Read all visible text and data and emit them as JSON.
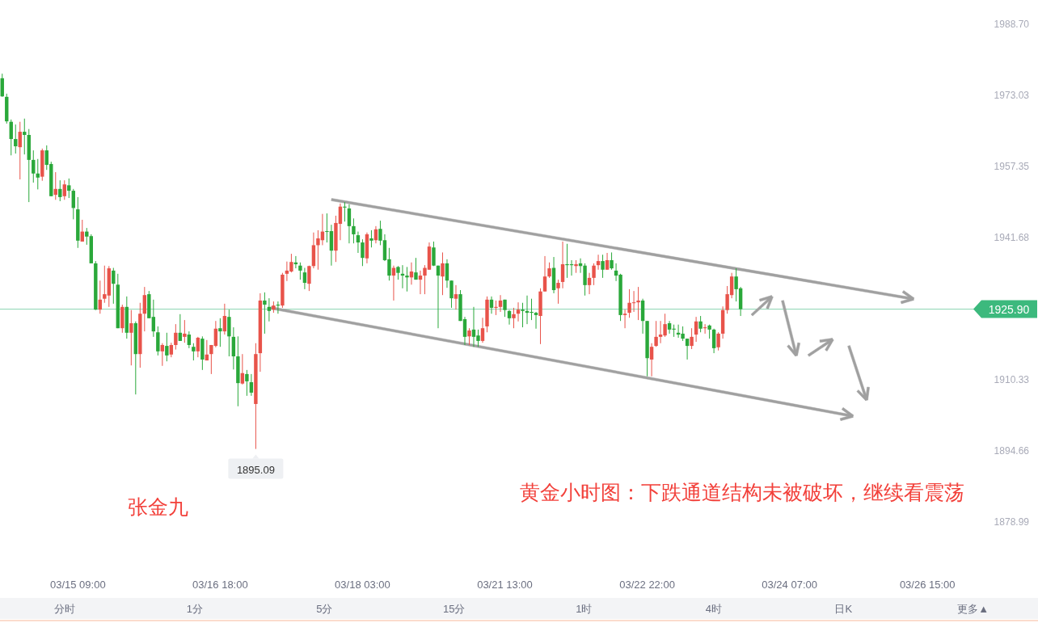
{
  "chart_data": {
    "type": "candlestick",
    "categories": [
      null,
      null,
      null,
      null,
      null,
      null,
      null,
      null,
      null,
      null,
      null,
      null,
      null,
      null,
      null,
      null,
      null,
      "03/15 09:00",
      null,
      null,
      null,
      null,
      null,
      null,
      null,
      null,
      null,
      null,
      null,
      null,
      null,
      null,
      null,
      null,
      null,
      null,
      null,
      null,
      null,
      null,
      null,
      null,
      null,
      null,
      null,
      null,
      null,
      null,
      null,
      "03/16 18:00",
      null,
      null,
      null,
      null,
      null,
      null,
      null,
      null,
      null,
      null,
      null,
      null,
      null,
      null,
      null,
      null,
      null,
      null,
      null,
      null,
      null,
      null,
      null,
      null,
      null,
      null,
      null,
      null,
      null,
      null,
      null,
      "03/18 03:00",
      null,
      null,
      null,
      null,
      null,
      null,
      null,
      null,
      null,
      null,
      null,
      null,
      null,
      null,
      null,
      null,
      null,
      null,
      null,
      null,
      null,
      null,
      null,
      null,
      null,
      null,
      null,
      null,
      null,
      null,
      null,
      "03/21 13:00",
      null,
      null,
      null,
      null,
      null,
      null,
      null,
      null,
      null,
      null,
      null,
      null,
      null,
      null,
      null,
      null,
      null,
      null,
      null,
      null,
      null,
      null,
      null,
      null,
      null,
      null,
      null,
      null,
      null,
      null,
      null,
      "03/22 22:00",
      null,
      null,
      null,
      null,
      null,
      null,
      null,
      null,
      null,
      null,
      null,
      null,
      null,
      null,
      null,
      null,
      null,
      null,
      null,
      null,
      null,
      null,
      null,
      null,
      null,
      null,
      null,
      null,
      null,
      null,
      null,
      "03/24 07:00",
      null,
      null,
      null,
      null,
      null,
      null,
      null,
      null,
      null,
      null,
      null,
      null,
      null,
      null,
      null,
      null,
      null,
      null,
      null,
      null,
      null,
      null,
      null,
      null,
      null,
      null,
      null,
      null,
      null,
      null,
      "03/26 15:00",
      null,
      null,
      null,
      null,
      null,
      null,
      null,
      null,
      null,
      null
    ],
    "ohlc": [
      [
        1976.8,
        1977.8,
        1972.7,
        1972.8
      ],
      [
        1972.7,
        1973.4,
        1966.8,
        1967.3
      ],
      [
        1967.2,
        1967.7,
        1959.8,
        1963.4
      ],
      [
        1963.4,
        1966.6,
        1960.2,
        1961.8
      ],
      [
        1961.6,
        1967.2,
        1954.5,
        1965.0
      ],
      [
        1965.0,
        1967.9,
        1960.0,
        1964.3
      ],
      [
        1964.3,
        1965.6,
        1949.5,
        1958.8
      ],
      [
        1958.8,
        1960.9,
        1953.8,
        1955.8
      ],
      [
        1955.8,
        1959.0,
        1952.3,
        1954.9
      ],
      [
        1955.1,
        1961.3,
        1954.2,
        1960.9
      ],
      [
        1960.9,
        1962.0,
        1956.6,
        1957.7
      ],
      [
        1957.9,
        1958.4,
        1950.8,
        1950.8
      ],
      [
        1951.1,
        1956.1,
        1950.0,
        1952.4
      ],
      [
        1952.4,
        1954.3,
        1949.7,
        1950.6
      ],
      [
        1950.8,
        1954.3,
        1950.0,
        1953.4
      ],
      [
        1953.2,
        1954.7,
        1950.4,
        1952.0
      ],
      [
        1952.0,
        1952.4,
        1945.7,
        1948.2
      ],
      [
        1947.9,
        1950.6,
        1939.4,
        1941.0
      ],
      [
        1940.8,
        1945.6,
        1940.8,
        1943.0
      ],
      [
        1943.0,
        1943.8,
        1940.1,
        1941.9
      ],
      [
        1942.0,
        1942.4,
        1936.0,
        1936.0
      ],
      [
        1936.0,
        1936.5,
        1925.7,
        1925.8
      ],
      [
        1925.8,
        1932.2,
        1924.9,
        1928.0
      ],
      [
        1928.2,
        1935.5,
        1927.3,
        1929.2
      ],
      [
        1928.9,
        1935.4,
        1926.4,
        1934.9
      ],
      [
        1934.4,
        1935.0,
        1927.1,
        1931.5
      ],
      [
        1931.3,
        1933.7,
        1921.7,
        1921.7
      ],
      [
        1921.7,
        1926.9,
        1920.7,
        1926.4
      ],
      [
        1926.4,
        1928.7,
        1919.4,
        1920.7
      ],
      [
        1920.7,
        1925.7,
        1913.5,
        1922.8
      ],
      [
        1922.8,
        1923.2,
        1907.1,
        1916.0
      ],
      [
        1916.0,
        1927.3,
        1913.0,
        1924.9
      ],
      [
        1924.9,
        1930.8,
        1921.0,
        1929.0
      ],
      [
        1929.2,
        1929.9,
        1923.9,
        1923.9
      ],
      [
        1924.2,
        1928.0,
        1919.8,
        1921.0
      ],
      [
        1920.8,
        1922.1,
        1915.7,
        1916.6
      ],
      [
        1916.6,
        1918.4,
        1913.4,
        1918.0
      ],
      [
        1917.8,
        1920.7,
        1914.4,
        1915.7
      ],
      [
        1915.9,
        1918.5,
        1915.3,
        1918.0
      ],
      [
        1918.0,
        1922.6,
        1917.0,
        1920.7
      ],
      [
        1920.7,
        1924.8,
        1918.9,
        1918.9
      ],
      [
        1919.8,
        1923.5,
        1918.5,
        1920.5
      ],
      [
        1920.3,
        1921.0,
        1917.3,
        1918.0
      ],
      [
        1917.6,
        1918.4,
        1914.6,
        1916.6
      ],
      [
        1916.6,
        1919.8,
        1915.3,
        1919.6
      ],
      [
        1919.4,
        1919.9,
        1912.5,
        1914.8
      ],
      [
        1914.6,
        1919.1,
        1914.6,
        1915.9
      ],
      [
        1916.0,
        1918.0,
        1911.6,
        1918.0
      ],
      [
        1917.8,
        1923.3,
        1917.5,
        1921.6
      ],
      [
        1921.7,
        1923.9,
        1917.6,
        1921.0
      ],
      [
        1921.0,
        1927.1,
        1920.3,
        1924.4
      ],
      [
        1924.2,
        1925.8,
        1915.5,
        1919.9
      ],
      [
        1919.8,
        1921.9,
        1912.6,
        1915.5
      ],
      [
        1915.5,
        1919.9,
        1904.5,
        1909.6
      ],
      [
        1909.5,
        1916.0,
        1909.3,
        1911.8
      ],
      [
        1911.6,
        1912.5,
        1906.8,
        1910.0
      ],
      [
        1909.8,
        1911.6,
        1906.8,
        1907.5
      ],
      [
        1905.0,
        1918.4,
        1895.09,
        1916.0
      ],
      [
        1916.2,
        1929.4,
        1912.1,
        1927.8
      ],
      [
        1927.8,
        1929.6,
        1920.5,
        1926.9
      ],
      [
        1926.4,
        1928.3,
        1923.2,
        1925.5
      ],
      [
        1925.8,
        1927.6,
        1925.1,
        1926.7
      ],
      [
        1926.9,
        1927.6,
        1924.9,
        1926.7
      ],
      [
        1926.7,
        1933.9,
        1926.2,
        1933.5
      ],
      [
        1933.7,
        1936.4,
        1932.1,
        1934.4
      ],
      [
        1934.2,
        1938.1,
        1934.0,
        1936.3
      ],
      [
        1936.2,
        1937.6,
        1934.9,
        1935.8
      ],
      [
        1935.5,
        1936.2,
        1932.4,
        1934.4
      ],
      [
        1934.0,
        1935.0,
        1930.3,
        1931.7
      ],
      [
        1931.5,
        1935.5,
        1929.9,
        1935.4
      ],
      [
        1935.4,
        1942.8,
        1934.9,
        1940.0
      ],
      [
        1940.0,
        1943.3,
        1934.6,
        1941.5
      ],
      [
        1941.1,
        1946.9,
        1940.0,
        1943.0
      ],
      [
        1943.1,
        1947.0,
        1940.6,
        1943.0
      ],
      [
        1943.1,
        1944.5,
        1935.5,
        1938.8
      ],
      [
        1938.8,
        1946.5,
        1936.3,
        1944.9
      ],
      [
        1944.7,
        1949.2,
        1941.1,
        1948.5
      ],
      [
        1948.5,
        1949.5,
        1945.2,
        1948.3
      ],
      [
        1948.1,
        1949.0,
        1940.4,
        1944.2
      ],
      [
        1944.2,
        1945.9,
        1940.4,
        1942.4
      ],
      [
        1942.2,
        1943.0,
        1938.3,
        1940.6
      ],
      [
        1940.6,
        1941.3,
        1935.4,
        1937.2
      ],
      [
        1937.1,
        1942.8,
        1936.0,
        1942.4
      ],
      [
        1941.5,
        1943.3,
        1939.5,
        1941.0
      ],
      [
        1941.1,
        1944.2,
        1940.4,
        1943.5
      ],
      [
        1943.6,
        1945.4,
        1940.0,
        1941.0
      ],
      [
        1941.1,
        1942.4,
        1936.5,
        1936.7
      ],
      [
        1936.9,
        1939.4,
        1932.2,
        1933.3
      ],
      [
        1933.3,
        1935.5,
        1927.8,
        1935.0
      ],
      [
        1935.2,
        1935.4,
        1932.4,
        1933.9
      ],
      [
        1933.7,
        1935.6,
        1930.5,
        1933.3
      ],
      [
        1933.3,
        1935.2,
        1929.8,
        1932.9
      ],
      [
        1932.9,
        1936.2,
        1931.3,
        1934.2
      ],
      [
        1934.0,
        1937.2,
        1932.4,
        1932.4
      ],
      [
        1932.4,
        1934.4,
        1929.2,
        1933.3
      ],
      [
        1933.3,
        1935.6,
        1929.2,
        1935.0
      ],
      [
        1934.6,
        1940.6,
        1934.6,
        1939.7
      ],
      [
        1939.5,
        1940.8,
        1935.4,
        1935.5
      ],
      [
        1935.5,
        1935.5,
        1921.7,
        1933.3
      ],
      [
        1933.1,
        1938.4,
        1929.0,
        1936.0
      ],
      [
        1936.0,
        1936.9,
        1930.6,
        1932.2
      ],
      [
        1932.2,
        1932.2,
        1926.2,
        1928.3
      ],
      [
        1928.2,
        1931.2,
        1925.8,
        1929.2
      ],
      [
        1929.2,
        1930.1,
        1923.3,
        1923.3
      ],
      [
        1923.7,
        1924.2,
        1918.0,
        1919.8
      ],
      [
        1919.9,
        1921.7,
        1918.0,
        1921.2
      ],
      [
        1921.4,
        1926.4,
        1917.6,
        1919.8
      ],
      [
        1920.1,
        1921.4,
        1917.6,
        1918.9
      ],
      [
        1918.9,
        1924.0,
        1918.5,
        1921.7
      ],
      [
        1922.1,
        1928.7,
        1920.8,
        1928.0
      ],
      [
        1928.0,
        1928.7,
        1924.9,
        1926.2
      ],
      [
        1926.2,
        1927.8,
        1924.6,
        1926.4
      ],
      [
        1926.4,
        1929.0,
        1925.3,
        1927.8
      ],
      [
        1928.0,
        1928.0,
        1924.2,
        1925.7
      ],
      [
        1925.5,
        1925.7,
        1922.5,
        1923.9
      ],
      [
        1923.9,
        1926.2,
        1921.7,
        1924.8
      ],
      [
        1924.9,
        1927.4,
        1923.2,
        1925.8
      ],
      [
        1925.8,
        1927.3,
        1921.9,
        1925.5
      ],
      [
        1925.5,
        1928.9,
        1922.6,
        1925.1
      ],
      [
        1925.3,
        1928.2,
        1923.5,
        1925.1
      ],
      [
        1925.1,
        1925.3,
        1921.6,
        1924.6
      ],
      [
        1924.4,
        1930.5,
        1918.2,
        1929.8
      ],
      [
        1929.8,
        1937.6,
        1929.8,
        1933.1
      ],
      [
        1933.1,
        1936.2,
        1932.8,
        1934.9
      ],
      [
        1935.0,
        1937.4,
        1929.4,
        1930.1
      ],
      [
        1930.5,
        1932.4,
        1927.1,
        1931.7
      ],
      [
        1931.9,
        1940.8,
        1930.5,
        1935.8
      ],
      [
        1935.8,
        1940.3,
        1932.8,
        1935.6
      ],
      [
        1935.8,
        1936.7,
        1933.3,
        1935.6
      ],
      [
        1935.4,
        1936.7,
        1933.9,
        1935.8
      ],
      [
        1936.0,
        1937.1,
        1933.9,
        1935.4
      ],
      [
        1935.5,
        1936.0,
        1928.9,
        1931.2
      ],
      [
        1931.2,
        1933.9,
        1929.2,
        1932.8
      ],
      [
        1932.8,
        1936.0,
        1931.2,
        1935.5
      ],
      [
        1935.6,
        1937.9,
        1934.6,
        1936.5
      ],
      [
        1936.5,
        1937.9,
        1932.8,
        1934.6
      ],
      [
        1934.6,
        1938.3,
        1934.6,
        1936.7
      ],
      [
        1936.7,
        1938.4,
        1934.6,
        1934.9
      ],
      [
        1934.4,
        1936.0,
        1932.1,
        1933.3
      ],
      [
        1933.5,
        1933.7,
        1923.3,
        1924.6
      ],
      [
        1924.6,
        1925.8,
        1921.7,
        1924.9
      ],
      [
        1925.1,
        1930.3,
        1924.0,
        1927.3
      ],
      [
        1927.3,
        1929.9,
        1925.3,
        1927.4
      ],
      [
        1927.4,
        1930.8,
        1923.5,
        1927.8
      ],
      [
        1927.8,
        1928.2,
        1920.5,
        1923.3
      ],
      [
        1923.3,
        1923.3,
        1911.1,
        1915.1
      ],
      [
        1914.8,
        1918.4,
        1911.1,
        1917.6
      ],
      [
        1917.8,
        1923.3,
        1917.6,
        1919.8
      ],
      [
        1919.8,
        1923.3,
        1918.4,
        1920.3
      ],
      [
        1920.1,
        1924.9,
        1919.8,
        1922.6
      ],
      [
        1922.8,
        1923.3,
        1920.5,
        1921.4
      ],
      [
        1921.6,
        1922.5,
        1919.8,
        1921.4
      ],
      [
        1920.7,
        1922.5,
        1919.6,
        1920.3
      ],
      [
        1920.5,
        1922.1,
        1918.9,
        1919.4
      ],
      [
        1919.4,
        1919.4,
        1914.8,
        1917.8
      ],
      [
        1917.8,
        1921.7,
        1917.1,
        1919.8
      ],
      [
        1920.3,
        1924.2,
        1918.7,
        1923.2
      ],
      [
        1923.2,
        1924.4,
        1920.8,
        1921.6
      ],
      [
        1921.7,
        1922.6,
        1920.5,
        1921.9
      ],
      [
        1922.3,
        1922.5,
        1919.4,
        1921.4
      ],
      [
        1921.4,
        1921.6,
        1916.2,
        1917.3
      ],
      [
        1917.5,
        1920.8,
        1916.8,
        1920.5
      ],
      [
        1920.5,
        1926.5,
        1919.4,
        1925.7
      ],
      [
        1925.7,
        1931.0,
        1924.9,
        1929.2
      ],
      [
        1929.0,
        1933.9,
        1928.3,
        1933.1
      ],
      [
        1933.1,
        1934.9,
        1927.6,
        1930.3
      ],
      [
        1930.5,
        1930.8,
        1924.4,
        1925.9
      ],
      null,
      null,
      null,
      null,
      null,
      null,
      null,
      null,
      null,
      null,
      null,
      null,
      null,
      null,
      null,
      null,
      null,
      null,
      null,
      null,
      null,
      null,
      null,
      null,
      null,
      null,
      null,
      null,
      null,
      null,
      null,
      null,
      null,
      null,
      null,
      null,
      null,
      null,
      null,
      null,
      null,
      null,
      null,
      null,
      null,
      null,
      null,
      null,
      null,
      null,
      null,
      null
    ],
    "colors": [
      "#2aa83a",
      "#2aa83a",
      "#2aa83a",
      "#2aa83a",
      "#e8534a",
      "#2aa83a",
      "#2aa83a",
      "#2aa83a",
      "#2aa83a",
      "#e8534a",
      "#2aa83a",
      "#2aa83a",
      "#e8534a",
      "#2aa83a",
      "#e8534a",
      "#2aa83a",
      "#2aa83a",
      "#2aa83a",
      "#e8534a",
      "#2aa83a",
      "#2aa83a",
      "#2aa83a",
      "#e8534a",
      "#e8534a",
      "#e8534a",
      "#2aa83a",
      "#2aa83a",
      "#e8534a",
      "#2aa83a",
      "#e8534a",
      "#2aa83a",
      "#e8534a",
      "#e8534a",
      "#2aa83a",
      "#2aa83a",
      "#2aa83a",
      "#e8534a",
      "#2aa83a",
      "#e8534a",
      "#e8534a",
      "#2aa83a",
      "#e8534a",
      "#2aa83a",
      "#2aa83a",
      "#e8534a",
      "#2aa83a",
      "#e8534a",
      "#e8534a",
      "#e8534a",
      "#2aa83a",
      "#e8534a",
      "#2aa83a",
      "#2aa83a",
      "#2aa83a",
      "#e8534a",
      "#2aa83a",
      "#2aa83a",
      "#e8534a",
      "#e8534a",
      "#2aa83a",
      "#2aa83a",
      "#e8534a",
      "#2aa83a",
      "#e8534a",
      "#e8534a",
      "#e8534a",
      "#2aa83a",
      "#2aa83a",
      "#2aa83a",
      "#e8534a",
      "#e8534a",
      "#e8534a",
      "#e8534a",
      "#2aa83a",
      "#2aa83a",
      "#e8534a",
      "#e8534a",
      "#2aa83a",
      "#2aa83a",
      "#2aa83a",
      "#2aa83a",
      "#2aa83a",
      "#e8534a",
      "#2aa83a",
      "#e8534a",
      "#2aa83a",
      "#2aa83a",
      "#2aa83a",
      "#e8534a",
      "#2aa83a",
      "#2aa83a",
      "#2aa83a",
      "#e8534a",
      "#2aa83a",
      "#e8534a",
      "#e8534a",
      "#e8534a",
      "#2aa83a",
      "#2aa83a",
      "#e8534a",
      "#2aa83a",
      "#2aa83a",
      "#e8534a",
      "#2aa83a",
      "#2aa83a",
      "#e8534a",
      "#2aa83a",
      "#2aa83a",
      "#e8534a",
      "#e8534a",
      "#2aa83a",
      "#e8534a",
      "#e8534a",
      "#2aa83a",
      "#2aa83a",
      "#e8534a",
      "#e8534a",
      "#2aa83a",
      "#2aa83a",
      "#2aa83a",
      "#2aa83a",
      "#e8534a",
      "#e8534a",
      "#e8534a",
      "#2aa83a",
      "#e8534a",
      "#e8534a",
      "#2aa83a",
      "#2aa83a",
      "#e8534a",
      "#2aa83a",
      "#2aa83a",
      "#e8534a",
      "#e8534a",
      "#e8534a",
      "#2aa83a",
      "#e8534a",
      "#2aa83a",
      "#2aa83a",
      "#2aa83a",
      "#e8534a",
      "#e8534a",
      "#e8534a",
      "#e8534a",
      "#2aa83a",
      "#2aa83a",
      "#e8534a",
      "#e8534a",
      "#e8534a",
      "#e8534a",
      "#2aa83a",
      "#2aa83a",
      "#2aa83a",
      "#2aa83a",
      "#2aa83a",
      "#e8534a",
      "#e8534a",
      "#2aa83a",
      "#e8534a",
      "#2aa83a",
      "#2aa83a",
      "#e8534a",
      "#e8534a",
      "#e8534a",
      "#e8534a",
      "#2aa83a",
      "#2aa83a",
      null,
      null,
      null,
      null,
      null,
      null,
      null,
      null,
      null,
      null,
      null,
      null,
      null,
      null,
      null,
      null,
      null,
      null,
      null,
      null,
      null,
      null,
      null,
      null,
      null,
      null,
      null,
      null,
      null,
      null,
      null,
      null,
      null,
      null,
      null,
      null,
      null,
      null,
      null,
      null,
      null,
      null,
      null,
      null,
      null,
      null,
      null,
      null,
      null,
      null,
      null,
      null
    ],
    "ylim": [
      1878.99,
      1988.7
    ],
    "yticks": [
      {
        "value": 1988.7,
        "label": "1988.70"
      },
      {
        "value": 1973.03,
        "label": "1973.03"
      },
      {
        "value": 1957.35,
        "label": "1957.35"
      },
      {
        "value": 1941.68,
        "label": "1941.68"
      },
      {
        "value": 1910.33,
        "label": "1910.33"
      },
      {
        "value": 1894.66,
        "label": "1894.66"
      },
      {
        "value": 1878.99,
        "label": "1878.99"
      }
    ],
    "ref_lines": [
      {
        "axis": "y",
        "value": 1925.9,
        "label": "1925.90",
        "color": "#3cb97d"
      }
    ],
    "annotations": [
      "张金九",
      "黄金小时图：下跌通道结构未被破坏，继续看震荡",
      {
        "text": "1895.09",
        "y": 1895.09
      },
      "分时",
      "1分",
      "5分",
      "15分",
      "1时",
      "4时",
      "日K",
      "更多▲"
    ]
  }
}
